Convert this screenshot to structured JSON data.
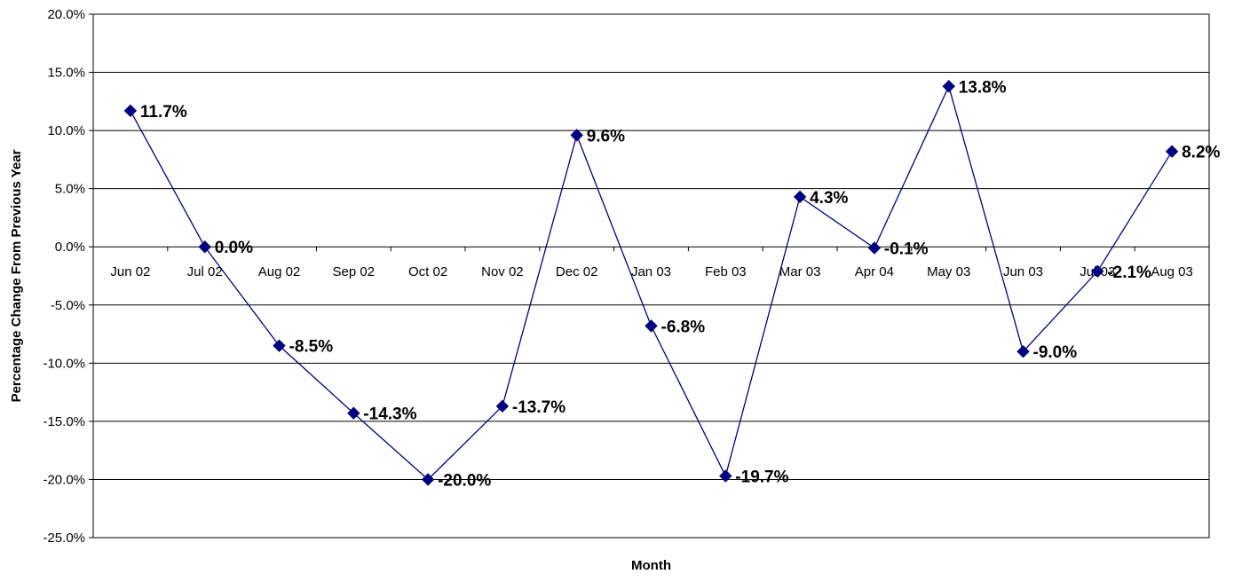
{
  "chart_data": {
    "type": "line",
    "title": "",
    "xlabel": "Month",
    "ylabel": "Percentage Change From Previous Year",
    "categories": [
      "Jun 02",
      "Jul 02",
      "Aug 02",
      "Sep 02",
      "Oct 02",
      "Nov 02",
      "Dec 02",
      "Jan 03",
      "Feb 03",
      "Mar 03",
      "Apr 04",
      "May 03",
      "Jun 03",
      "Jul 03",
      "Aug 03"
    ],
    "values": [
      11.7,
      0.0,
      -8.5,
      -14.3,
      -20.0,
      -13.7,
      9.6,
      -6.8,
      -19.7,
      4.3,
      -0.1,
      13.8,
      -9.0,
      -2.1,
      8.2
    ],
    "data_labels": [
      "11.7%",
      "0.0%",
      "-8.5%",
      "-14.3%",
      "-20.0%",
      "-13.7%",
      "9.6%",
      "-6.8%",
      "-19.7%",
      "4.3%",
      "-0.1%",
      "13.8%",
      "-9.0%",
      "-2.1%",
      "8.2%"
    ],
    "ylim": [
      -25,
      20
    ],
    "yticks": [
      20,
      15,
      10,
      5,
      0,
      -5,
      -10,
      -15,
      -20,
      -25
    ],
    "ytick_labels": [
      "20.0%",
      "15.0%",
      "10.0%",
      "5.0%",
      "0.0%",
      "-5.0%",
      "-10.0%",
      "-15.0%",
      "-20.0%",
      "-25.0%"
    ],
    "grid": true,
    "legend": "none",
    "line_color": "#000080",
    "marker": "diamond",
    "marker_color": "#000080"
  }
}
